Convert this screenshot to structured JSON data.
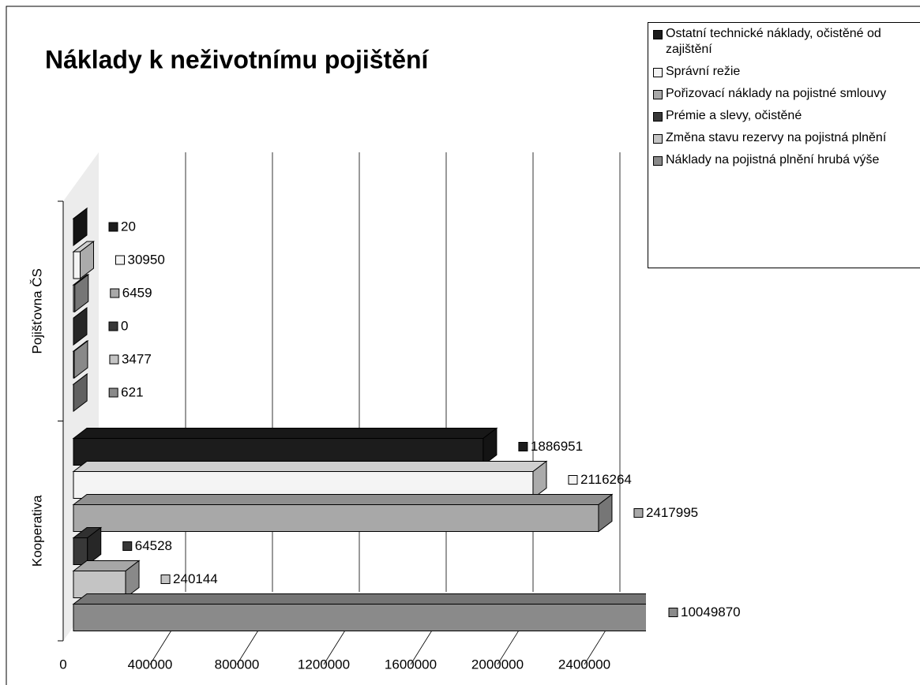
{
  "chart_data": {
    "type": "bar3d_horizontal",
    "title": "Náklady k neživotnímu pojištění",
    "categories": [
      "Pojišťovna ČS",
      "Kooperativa"
    ],
    "series": [
      {
        "name": "Ostatní technické náklady, očistěné od zajištění",
        "color": "#1c1c1c",
        "values": [
          20,
          1886951
        ]
      },
      {
        "name": "Správní režie",
        "color": "#f4f4f4",
        "values": [
          30950,
          2116264
        ]
      },
      {
        "name": "Pořizovací náklady na pojistné smlouvy",
        "color": "#a8a8a8",
        "values": [
          6459,
          2417995
        ]
      },
      {
        "name": "Prémie a slevy, očistěné",
        "color": "#383838",
        "values": [
          0,
          64528
        ]
      },
      {
        "name": "Změna stavu rezervy na pojistná plnění",
        "color": "#c4c4c4",
        "values": [
          3477,
          240144
        ]
      },
      {
        "name": "Náklady na pojistná plnění hrubá výše",
        "color": "#8a8a8a",
        "values": [
          621,
          10049870
        ]
      }
    ],
    "xlim": [
      0,
      2600000
    ],
    "xticks": [
      0,
      400000,
      800000,
      1200000,
      1600000,
      2000000,
      2400000
    ],
    "grid": true,
    "legend": "top-right"
  }
}
